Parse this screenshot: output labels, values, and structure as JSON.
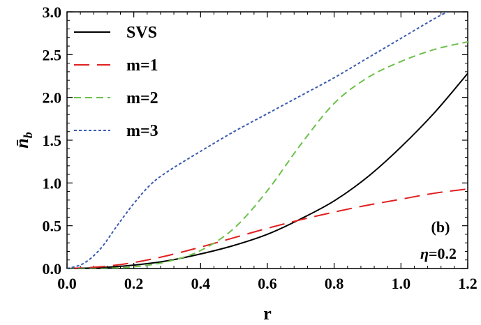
{
  "chart_data": {
    "type": "line",
    "xlabel": "r",
    "ylabel": "n̄",
    "ylabel_sub": "b",
    "xlim": [
      0.0,
      1.2
    ],
    "ylim": [
      0.0,
      3.0
    ],
    "xticks": [
      "0.0",
      "0.2",
      "0.4",
      "0.6",
      "0.8",
      "1.0",
      "1.2"
    ],
    "yticks": [
      "0.0",
      "0.5",
      "1.0",
      "1.5",
      "2.0",
      "2.5",
      "3.0"
    ],
    "legend_position": "top-left",
    "annotations": {
      "panel": "(b)",
      "param_symbol": "η",
      "param_value": "=0.2"
    },
    "series": [
      {
        "name": "SVS",
        "color": "#000000",
        "dash": "solid",
        "x": [
          0.0,
          0.1,
          0.2,
          0.3,
          0.4,
          0.5,
          0.6,
          0.7,
          0.8,
          0.9,
          1.0,
          1.1,
          1.2
        ],
        "y": [
          0.0,
          0.01,
          0.04,
          0.09,
          0.17,
          0.27,
          0.4,
          0.58,
          0.79,
          1.07,
          1.42,
          1.82,
          2.28
        ]
      },
      {
        "name": "m=1",
        "color": "#e02020",
        "dash": "long",
        "x": [
          0.0,
          0.1,
          0.2,
          0.3,
          0.4,
          0.5,
          0.6,
          0.7,
          0.8,
          0.9,
          1.0,
          1.1,
          1.2
        ],
        "y": [
          0.0,
          0.02,
          0.07,
          0.15,
          0.25,
          0.36,
          0.47,
          0.57,
          0.66,
          0.74,
          0.81,
          0.88,
          0.93
        ]
      },
      {
        "name": "m=2",
        "color": "#6cc04a",
        "dash": "medium",
        "x": [
          0.0,
          0.1,
          0.2,
          0.3,
          0.4,
          0.5,
          0.6,
          0.7,
          0.8,
          0.9,
          1.0,
          1.1,
          1.2
        ],
        "y": [
          0.0,
          0.0,
          0.02,
          0.08,
          0.21,
          0.47,
          0.91,
          1.45,
          1.93,
          2.23,
          2.42,
          2.56,
          2.65
        ]
      },
      {
        "name": "m=3",
        "color": "#3a5bb0",
        "dash": "short",
        "x": [
          0.0,
          0.05,
          0.1,
          0.15,
          0.2,
          0.25,
          0.3,
          0.4,
          0.5,
          0.6,
          0.7,
          0.8,
          0.9,
          1.0,
          1.1,
          1.14
        ],
        "y": [
          0.0,
          0.06,
          0.23,
          0.5,
          0.76,
          0.98,
          1.13,
          1.37,
          1.6,
          1.81,
          2.02,
          2.23,
          2.46,
          2.69,
          2.92,
          3.0
        ]
      }
    ]
  }
}
